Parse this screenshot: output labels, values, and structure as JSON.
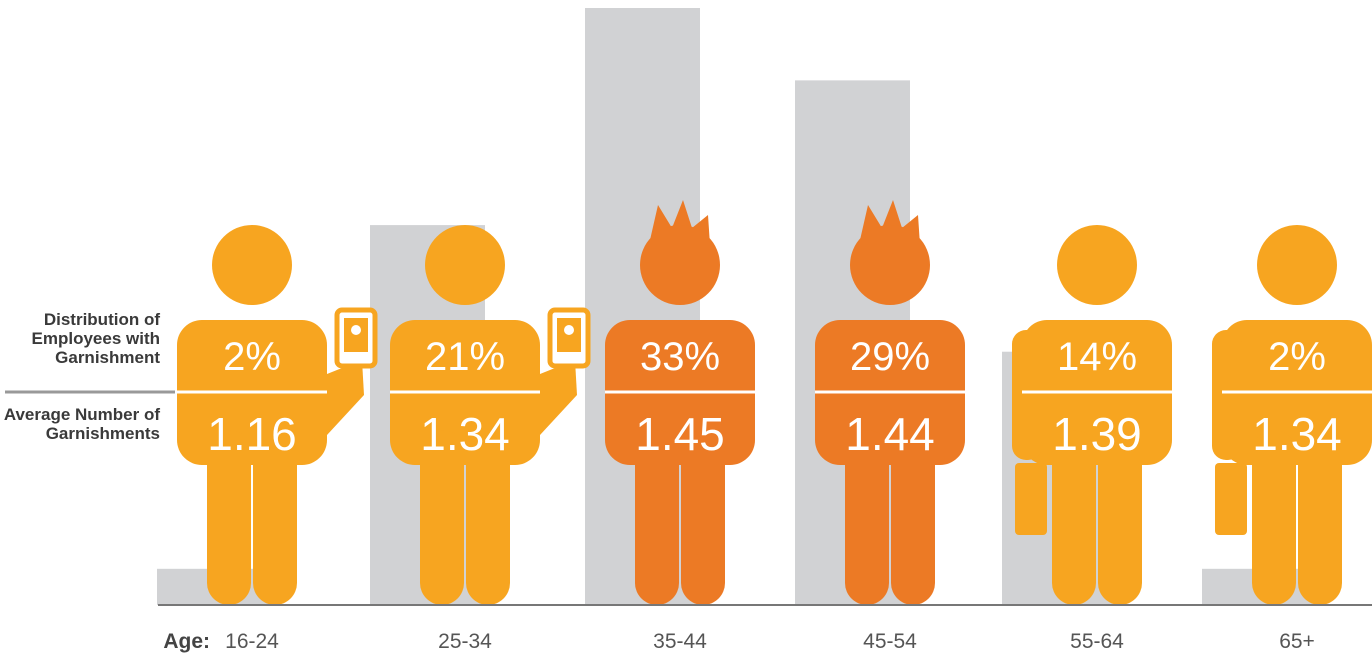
{
  "chart_data": {
    "type": "bar",
    "x_label": "Age:",
    "categories": [
      "16-24",
      "25-34",
      "35-44",
      "45-54",
      "55-64",
      "65+"
    ],
    "series": [
      {
        "name": "Distribution of Employees with Garnishment",
        "color": "#d1d2d4",
        "values": [
          2,
          21,
          33,
          29,
          14,
          2
        ],
        "value_labels": [
          "2%",
          "21%",
          "33%",
          "29%",
          "14%",
          "2%"
        ]
      },
      {
        "name": "Average Number of Garnishments",
        "values": [
          1.16,
          1.34,
          1.45,
          1.44,
          1.39,
          1.34
        ]
      }
    ],
    "icon_colors": [
      "#f7a520",
      "#f7a520",
      "#ec7a25",
      "#ec7a25",
      "#f7a520",
      "#f7a520"
    ],
    "ylim": [
      0,
      33
    ]
  }
}
